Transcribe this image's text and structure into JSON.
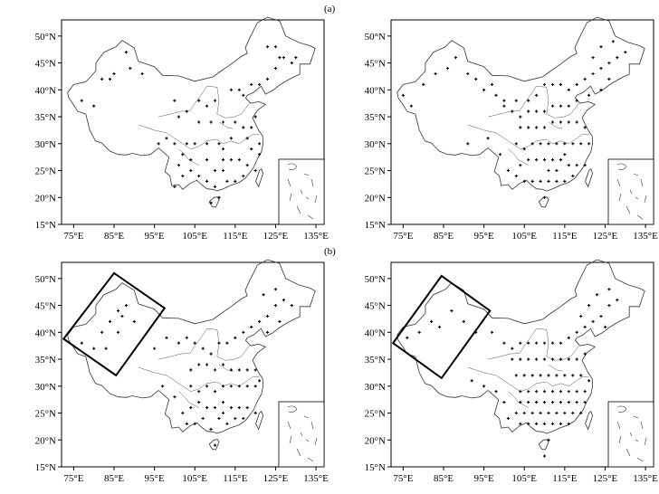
{
  "figure": {
    "panel_labels": [
      "(a)",
      "(b)"
    ],
    "x_ticks": [
      "75°E",
      "85°E",
      "95°E",
      "105°E",
      "115°E",
      "125°E",
      "135°E"
    ],
    "y_ticks": [
      "50°N",
      "45°N",
      "40°N",
      "35°N",
      "30°N",
      "25°N",
      "20°N",
      "15°N"
    ],
    "x_tick_values": [
      75,
      85,
      95,
      105,
      115,
      125,
      135
    ],
    "y_tick_values": [
      50,
      45,
      40,
      35,
      30,
      25,
      20,
      15
    ],
    "lon_range": [
      72,
      137
    ],
    "lat_range": [
      15,
      53
    ],
    "marker_color": "#000000",
    "boundary_color": "#333333"
  },
  "maps": [
    {
      "id": "a-left",
      "stations": [
        [
          88,
          47
        ],
        [
          85,
          43
        ],
        [
          82,
          42
        ],
        [
          77,
          38
        ],
        [
          80,
          37
        ],
        [
          84,
          42
        ],
        [
          89,
          44
        ],
        [
          92,
          43
        ],
        [
          100,
          38
        ],
        [
          103,
          36
        ],
        [
          101,
          35
        ],
        [
          106,
          38
        ],
        [
          108,
          37
        ],
        [
          110,
          38
        ],
        [
          114,
          40
        ],
        [
          116,
          40
        ],
        [
          117,
          39
        ],
        [
          119,
          41
        ],
        [
          121,
          41
        ],
        [
          123,
          42
        ],
        [
          125,
          44
        ],
        [
          126,
          46
        ],
        [
          125,
          48
        ],
        [
          130,
          46
        ],
        [
          123,
          48
        ],
        [
          127,
          46
        ],
        [
          129,
          45
        ],
        [
          106,
          34
        ],
        [
          109,
          34
        ],
        [
          112,
          34
        ],
        [
          115,
          34
        ],
        [
          117,
          33
        ],
        [
          119,
          33
        ],
        [
          114,
          31
        ],
        [
          111,
          30
        ],
        [
          108,
          30
        ],
        [
          105,
          30
        ],
        [
          103,
          30
        ],
        [
          100,
          30
        ],
        [
          98,
          31
        ],
        [
          110,
          25
        ],
        [
          112,
          27
        ],
        [
          114,
          27
        ],
        [
          116,
          27
        ],
        [
          118,
          26
        ],
        [
          119,
          29
        ],
        [
          121,
          30
        ],
        [
          113,
          23
        ],
        [
          110,
          22
        ],
        [
          108,
          23
        ],
        [
          106,
          24
        ],
        [
          104,
          25
        ],
        [
          101,
          26
        ],
        [
          102,
          24
        ],
        [
          100,
          22
        ],
        [
          109,
          19
        ],
        [
          111,
          20
        ],
        [
          115,
          23
        ],
        [
          117,
          24
        ],
        [
          120,
          25
        ],
        [
          121,
          28
        ],
        [
          96,
          30
        ],
        [
          102,
          28
        ],
        [
          104,
          27
        ],
        [
          112,
          25
        ],
        [
          108,
          27
        ],
        [
          112,
          29
        ],
        [
          118,
          31
        ],
        [
          120,
          35
        ]
      ]
    },
    {
      "id": "a-right",
      "stations": [
        [
          75,
          39
        ],
        [
          77,
          37
        ],
        [
          80,
          41
        ],
        [
          83,
          43
        ],
        [
          86,
          44
        ],
        [
          88,
          46
        ],
        [
          91,
          43
        ],
        [
          93,
          42
        ],
        [
          95,
          40
        ],
        [
          97,
          41
        ],
        [
          98,
          39
        ],
        [
          100,
          38
        ],
        [
          103,
          38
        ],
        [
          106,
          38
        ],
        [
          108,
          39
        ],
        [
          110,
          41
        ],
        [
          112,
          41
        ],
        [
          114,
          41
        ],
        [
          116,
          40
        ],
        [
          118,
          41
        ],
        [
          120,
          42
        ],
        [
          122,
          43
        ],
        [
          124,
          44
        ],
        [
          126,
          45
        ],
        [
          128,
          46
        ],
        [
          130,
          47
        ],
        [
          127,
          49
        ],
        [
          124,
          48
        ],
        [
          122,
          46
        ],
        [
          126,
          42
        ],
        [
          124,
          40
        ],
        [
          121,
          39
        ],
        [
          118,
          38
        ],
        [
          116,
          37
        ],
        [
          114,
          37
        ],
        [
          112,
          37
        ],
        [
          110,
          36
        ],
        [
          108,
          36
        ],
        [
          106,
          36
        ],
        [
          104,
          35
        ],
        [
          102,
          36
        ],
        [
          100,
          37
        ],
        [
          104,
          33
        ],
        [
          106,
          33
        ],
        [
          108,
          33
        ],
        [
          110,
          33
        ],
        [
          112,
          34
        ],
        [
          114,
          34
        ],
        [
          116,
          34
        ],
        [
          118,
          34
        ],
        [
          120,
          33
        ],
        [
          103,
          30
        ],
        [
          105,
          29
        ],
        [
          107,
          30
        ],
        [
          109,
          30
        ],
        [
          111,
          30
        ],
        [
          113,
          30
        ],
        [
          115,
          30
        ],
        [
          117,
          30
        ],
        [
          119,
          30
        ],
        [
          121,
          30
        ],
        [
          104,
          26
        ],
        [
          106,
          27
        ],
        [
          108,
          27
        ],
        [
          110,
          27
        ],
        [
          112,
          27
        ],
        [
          114,
          27
        ],
        [
          116,
          26
        ],
        [
          118,
          26
        ],
        [
          120,
          26
        ],
        [
          103,
          24
        ],
        [
          105,
          23
        ],
        [
          107,
          23
        ],
        [
          109,
          23
        ],
        [
          111,
          23
        ],
        [
          113,
          23
        ],
        [
          115,
          23
        ],
        [
          117,
          24
        ],
        [
          110,
          20
        ],
        [
          91,
          30
        ],
        [
          96,
          31
        ],
        [
          99,
          28
        ],
        [
          101,
          25
        ],
        [
          111,
          25
        ],
        [
          113,
          25
        ],
        [
          115,
          28
        ]
      ]
    },
    {
      "id": "b-left",
      "stations": [
        [
          77,
          38
        ],
        [
          80,
          37
        ],
        [
          82,
          40
        ],
        [
          84,
          42
        ],
        [
          86,
          44
        ],
        [
          88,
          45
        ],
        [
          87,
          43
        ],
        [
          90,
          42
        ],
        [
          86,
          40
        ],
        [
          83,
          37
        ],
        [
          95,
          37
        ],
        [
          98,
          39
        ],
        [
          101,
          38
        ],
        [
          103,
          39
        ],
        [
          105,
          38
        ],
        [
          107,
          37
        ],
        [
          109,
          36
        ],
        [
          111,
          38
        ],
        [
          113,
          38
        ],
        [
          115,
          39
        ],
        [
          117,
          40
        ],
        [
          119,
          41
        ],
        [
          121,
          42
        ],
        [
          123,
          43
        ],
        [
          125,
          45
        ],
        [
          127,
          46
        ],
        [
          125,
          48
        ],
        [
          122,
          47
        ],
        [
          129,
          45
        ],
        [
          126,
          42
        ],
        [
          123,
          40
        ],
        [
          104,
          33
        ],
        [
          106,
          34
        ],
        [
          108,
          34
        ],
        [
          110,
          33
        ],
        [
          112,
          34
        ],
        [
          114,
          33
        ],
        [
          116,
          33
        ],
        [
          118,
          33
        ],
        [
          120,
          33
        ],
        [
          104,
          30
        ],
        [
          106,
          29
        ],
        [
          108,
          30
        ],
        [
          110,
          29
        ],
        [
          112,
          30
        ],
        [
          114,
          30
        ],
        [
          116,
          30
        ],
        [
          118,
          30
        ],
        [
          120,
          30
        ],
        [
          121,
          31
        ],
        [
          104,
          26
        ],
        [
          106,
          27
        ],
        [
          108,
          26
        ],
        [
          110,
          26
        ],
        [
          112,
          27
        ],
        [
          114,
          26
        ],
        [
          116,
          26
        ],
        [
          118,
          26
        ],
        [
          120,
          25
        ],
        [
          103,
          23
        ],
        [
          105,
          23
        ],
        [
          107,
          24
        ],
        [
          109,
          22
        ],
        [
          111,
          24
        ],
        [
          113,
          23
        ],
        [
          115,
          24
        ],
        [
          117,
          24
        ],
        [
          110,
          19
        ],
        [
          97,
          30
        ],
        [
          100,
          28
        ],
        [
          102,
          25
        ],
        [
          112,
          25
        ]
      ]
    },
    {
      "id": "b-right",
      "stations": [
        [
          76,
          39
        ],
        [
          79,
          40
        ],
        [
          82,
          42
        ],
        [
          84,
          41
        ],
        [
          87,
          44
        ],
        [
          90,
          42
        ],
        [
          93,
          40
        ],
        [
          97,
          40
        ],
        [
          100,
          38
        ],
        [
          102,
          37
        ],
        [
          104,
          38
        ],
        [
          106,
          38
        ],
        [
          108,
          38
        ],
        [
          110,
          38
        ],
        [
          112,
          38
        ],
        [
          114,
          38
        ],
        [
          116,
          39
        ],
        [
          118,
          40
        ],
        [
          120,
          41
        ],
        [
          122,
          42
        ],
        [
          124,
          43
        ],
        [
          126,
          45
        ],
        [
          128,
          46
        ],
        [
          126,
          48
        ],
        [
          123,
          47
        ],
        [
          121,
          45
        ],
        [
          119,
          43
        ],
        [
          125,
          41
        ],
        [
          102,
          35
        ],
        [
          104,
          35
        ],
        [
          106,
          35
        ],
        [
          108,
          35
        ],
        [
          110,
          35
        ],
        [
          112,
          35
        ],
        [
          114,
          35
        ],
        [
          116,
          35
        ],
        [
          118,
          35
        ],
        [
          120,
          36
        ],
        [
          103,
          32
        ],
        [
          105,
          32
        ],
        [
          107,
          32
        ],
        [
          109,
          32
        ],
        [
          111,
          32
        ],
        [
          113,
          32
        ],
        [
          115,
          32
        ],
        [
          117,
          32
        ],
        [
          119,
          32
        ],
        [
          121,
          31
        ],
        [
          104,
          29
        ],
        [
          106,
          29
        ],
        [
          108,
          29
        ],
        [
          110,
          29
        ],
        [
          112,
          29
        ],
        [
          114,
          29
        ],
        [
          116,
          29
        ],
        [
          118,
          29
        ],
        [
          120,
          29
        ],
        [
          104,
          27
        ],
        [
          106,
          27
        ],
        [
          108,
          27
        ],
        [
          110,
          27
        ],
        [
          112,
          27
        ],
        [
          114,
          27
        ],
        [
          116,
          27
        ],
        [
          118,
          27
        ],
        [
          120,
          27
        ],
        [
          103,
          25
        ],
        [
          105,
          25
        ],
        [
          107,
          25
        ],
        [
          109,
          25
        ],
        [
          111,
          25
        ],
        [
          113,
          25
        ],
        [
          115,
          25
        ],
        [
          117,
          25
        ],
        [
          119,
          25
        ],
        [
          104,
          23
        ],
        [
          106,
          23
        ],
        [
          108,
          23
        ],
        [
          110,
          23
        ],
        [
          112,
          23
        ],
        [
          114,
          23
        ],
        [
          116,
          23
        ],
        [
          111,
          20
        ],
        [
          110,
          17
        ],
        [
          92,
          31
        ],
        [
          95,
          30
        ],
        [
          98,
          29
        ],
        [
          100,
          27
        ],
        [
          101,
          24
        ]
      ]
    }
  ]
}
